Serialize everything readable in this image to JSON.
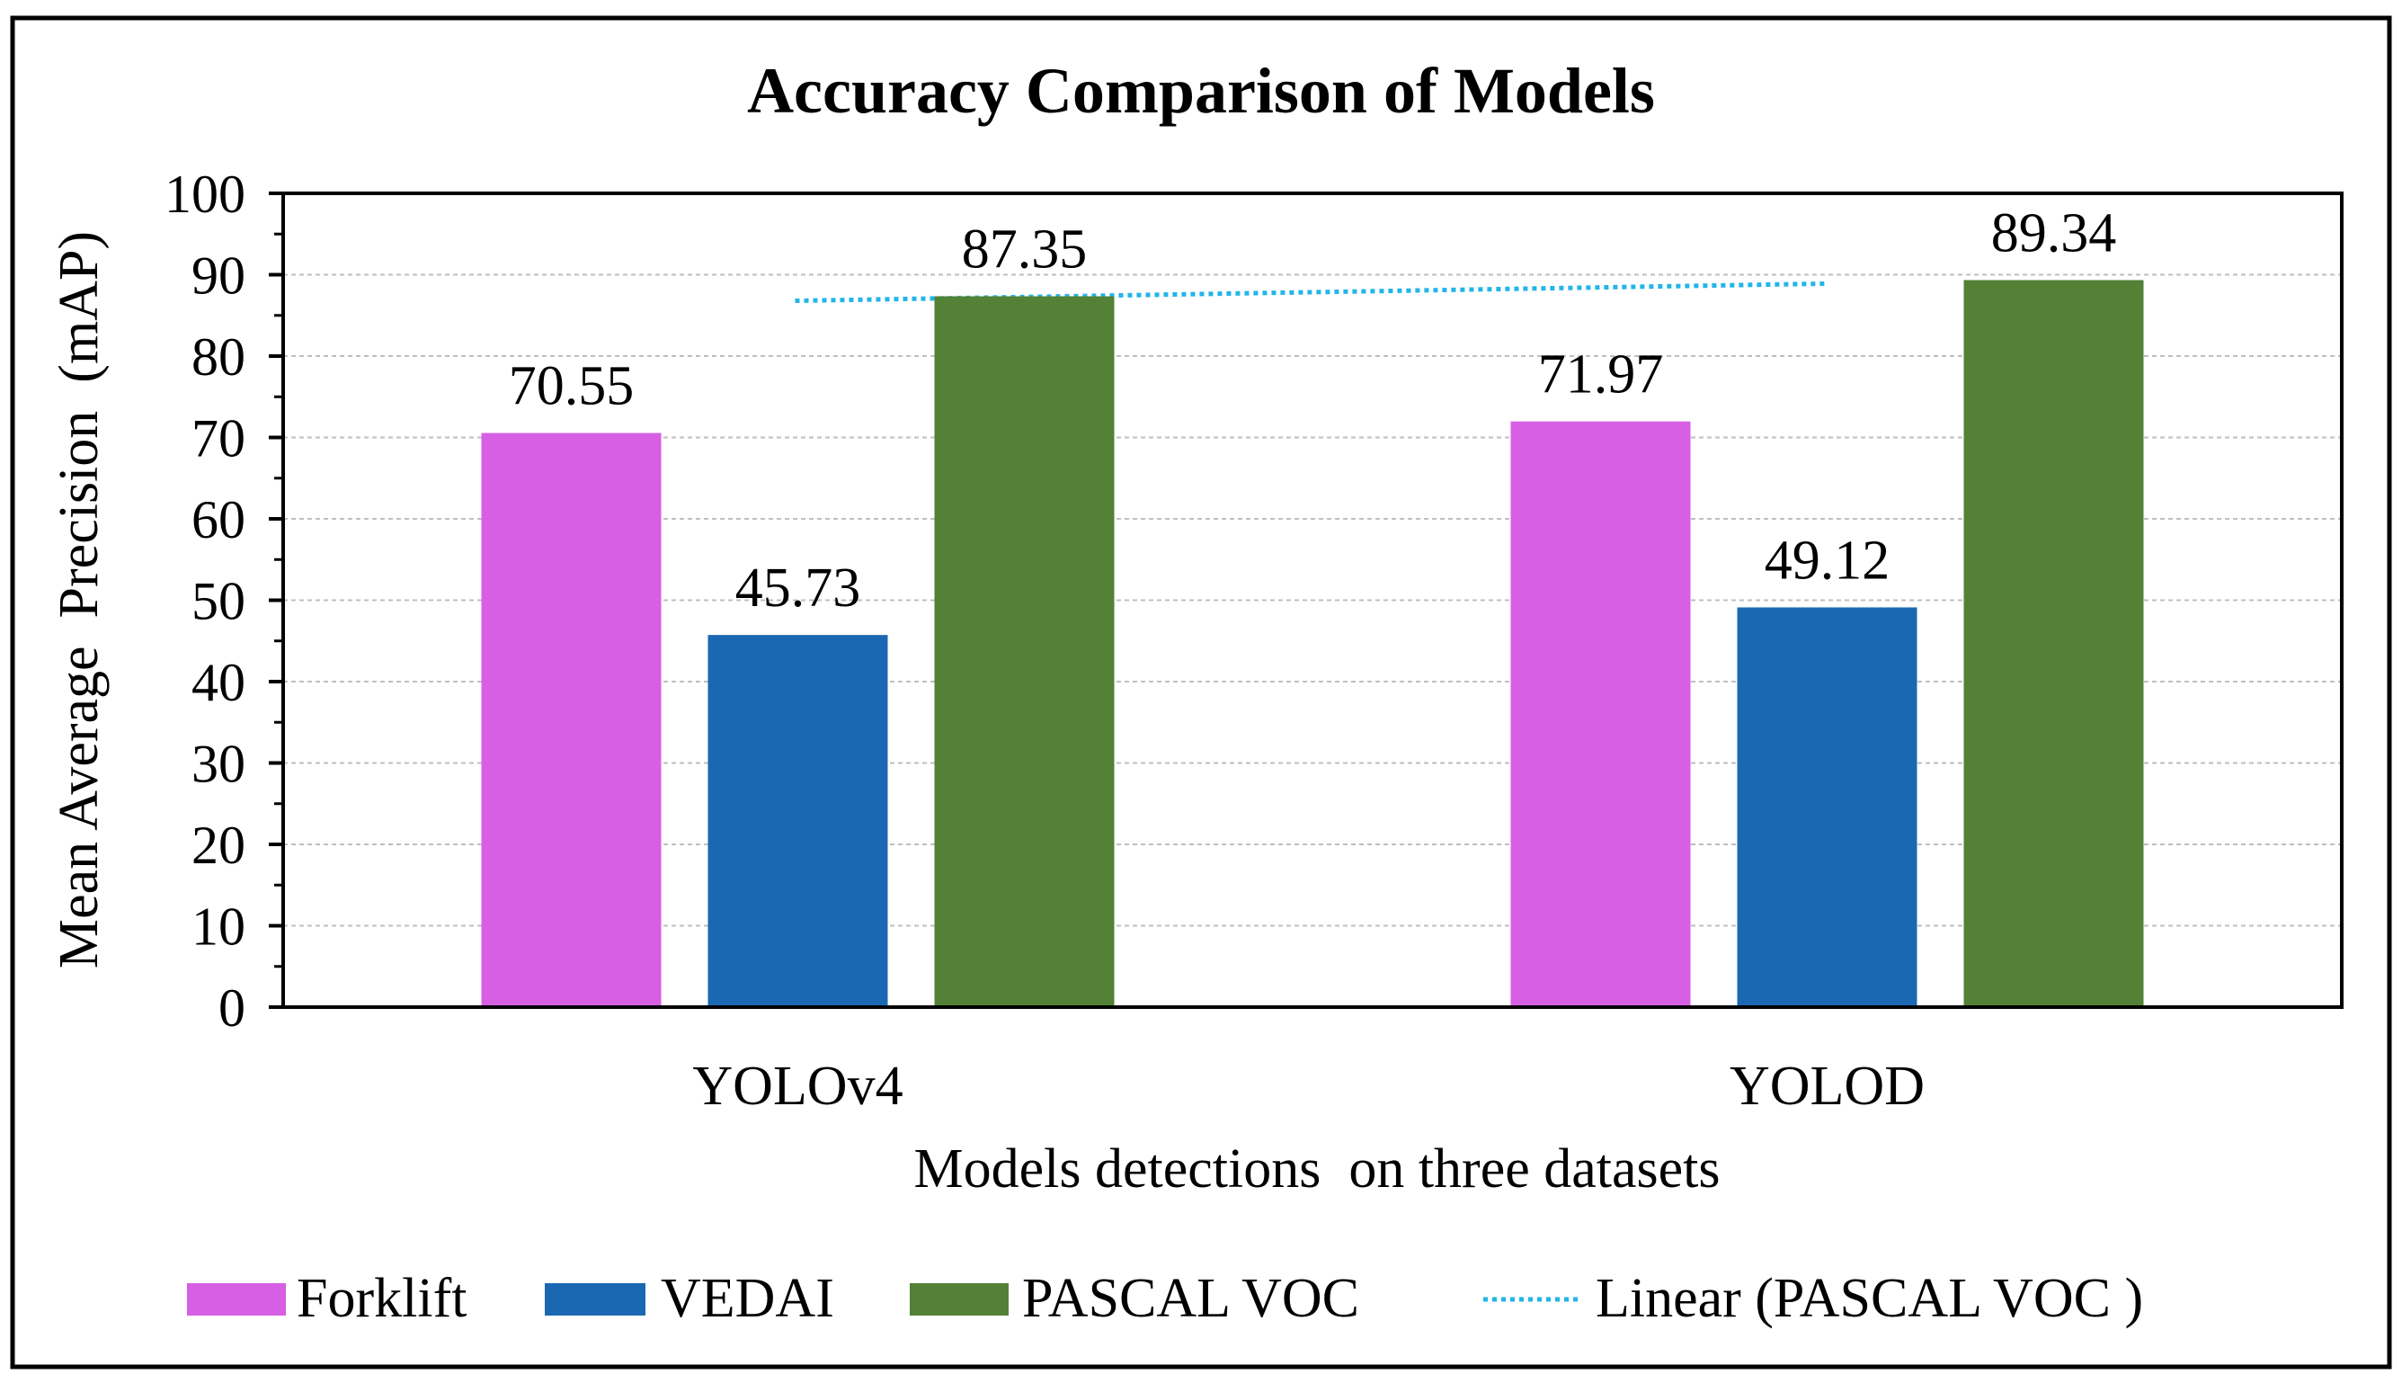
{
  "chart_data": {
    "type": "bar",
    "title": "Accuracy Comparison of Models",
    "xlabel": "Models detections  on three datasets",
    "ylabel": "Mean Average  Precision  (mAP)",
    "categories": [
      "YOLOv4",
      "YOLOD"
    ],
    "series": [
      {
        "name": "Forklift",
        "color": "#d65fe4",
        "values": [
          70.55,
          71.97
        ],
        "labels": [
          "70.55",
          "71.97"
        ]
      },
      {
        "name": "VEDAI",
        "color": "#1b68b2",
        "values": [
          45.73,
          49.12
        ],
        "labels": [
          "45.73",
          "49.12"
        ]
      },
      {
        "name": "PASCAL VOC",
        "color": "#538135",
        "values": [
          87.35,
          89.34
        ],
        "labels": [
          "87.35",
          "89.34"
        ]
      }
    ],
    "trendline": {
      "name": "Linear (PASCAL VOC )",
      "series": "PASCAL VOC",
      "color": "#22b5e8",
      "values": [
        87.35,
        89.34
      ]
    },
    "ylim": [
      0,
      100
    ],
    "yticks": [
      0,
      10,
      20,
      30,
      40,
      50,
      60,
      70,
      80,
      90,
      100
    ],
    "grid": true,
    "legend_position": "bottom"
  }
}
